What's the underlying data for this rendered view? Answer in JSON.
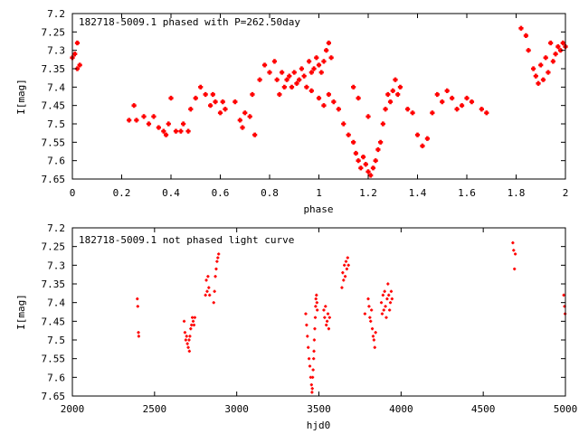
{
  "chart_data": [
    {
      "type": "scatter",
      "title": "182718-5009.1 phased with P=262.50day",
      "xlabel": "phase",
      "ylabel": "I[mag]",
      "xlim": [
        0,
        2
      ],
      "ylim": [
        7.2,
        7.65
      ],
      "y_inverted": true,
      "marker": "cross",
      "color": "#ff0000",
      "xticks": [
        0,
        0.2,
        0.4,
        0.6,
        0.8,
        1,
        1.2,
        1.4,
        1.6,
        1.8,
        2
      ],
      "xtick_labels": [
        "0",
        "0.2",
        "0.4",
        "0.6",
        "0.8",
        "1",
        "1.2",
        "1.4",
        "1.6",
        "1.8",
        "2"
      ],
      "yticks": [
        7.2,
        7.25,
        7.3,
        7.35,
        7.4,
        7.45,
        7.5,
        7.55,
        7.6,
        7.65
      ],
      "ytick_labels": [
        "7.2",
        "7.25",
        "7.3",
        "7.35",
        "7.4",
        "7.45",
        "7.5",
        "7.55",
        "7.6",
        "7.65"
      ],
      "points": [
        [
          0.0,
          7.32
        ],
        [
          0.01,
          7.31
        ],
        [
          0.02,
          7.28
        ],
        [
          0.02,
          7.35
        ],
        [
          0.03,
          7.34
        ],
        [
          0.23,
          7.49
        ],
        [
          0.25,
          7.45
        ],
        [
          0.26,
          7.49
        ],
        [
          0.29,
          7.48
        ],
        [
          0.31,
          7.5
        ],
        [
          0.33,
          7.48
        ],
        [
          0.35,
          7.51
        ],
        [
          0.37,
          7.52
        ],
        [
          0.38,
          7.53
        ],
        [
          0.39,
          7.5
        ],
        [
          0.4,
          7.43
        ],
        [
          0.42,
          7.52
        ],
        [
          0.44,
          7.52
        ],
        [
          0.45,
          7.5
        ],
        [
          0.47,
          7.52
        ],
        [
          0.48,
          7.46
        ],
        [
          0.5,
          7.43
        ],
        [
          0.52,
          7.4
        ],
        [
          0.54,
          7.42
        ],
        [
          0.56,
          7.45
        ],
        [
          0.57,
          7.42
        ],
        [
          0.58,
          7.44
        ],
        [
          0.6,
          7.47
        ],
        [
          0.61,
          7.44
        ],
        [
          0.62,
          7.46
        ],
        [
          0.66,
          7.44
        ],
        [
          0.68,
          7.49
        ],
        [
          0.69,
          7.51
        ],
        [
          0.7,
          7.47
        ],
        [
          0.72,
          7.48
        ],
        [
          0.73,
          7.42
        ],
        [
          0.74,
          7.53
        ],
        [
          0.76,
          7.38
        ],
        [
          0.78,
          7.34
        ],
        [
          0.8,
          7.36
        ],
        [
          0.82,
          7.33
        ],
        [
          0.83,
          7.38
        ],
        [
          0.84,
          7.42
        ],
        [
          0.85,
          7.36
        ],
        [
          0.86,
          7.4
        ],
        [
          0.87,
          7.38
        ],
        [
          0.88,
          7.37
        ],
        [
          0.89,
          7.4
        ],
        [
          0.9,
          7.36
        ],
        [
          0.91,
          7.39
        ],
        [
          0.92,
          7.38
        ],
        [
          0.93,
          7.35
        ],
        [
          0.94,
          7.37
        ],
        [
          0.95,
          7.4
        ],
        [
          0.96,
          7.33
        ],
        [
          0.97,
          7.36
        ],
        [
          0.98,
          7.35
        ],
        [
          0.99,
          7.32
        ],
        [
          1.0,
          7.34
        ],
        [
          1.01,
          7.36
        ],
        [
          1.02,
          7.33
        ],
        [
          1.03,
          7.3
        ],
        [
          1.04,
          7.28
        ],
        [
          1.05,
          7.32
        ],
        [
          0.97,
          7.41
        ],
        [
          1.0,
          7.43
        ],
        [
          1.02,
          7.45
        ],
        [
          1.04,
          7.42
        ],
        [
          1.06,
          7.44
        ],
        [
          1.08,
          7.46
        ],
        [
          1.1,
          7.5
        ],
        [
          1.12,
          7.53
        ],
        [
          1.14,
          7.55
        ],
        [
          1.15,
          7.58
        ],
        [
          1.16,
          7.6
        ],
        [
          1.17,
          7.62
        ],
        [
          1.18,
          7.59
        ],
        [
          1.19,
          7.61
        ],
        [
          1.2,
          7.63
        ],
        [
          1.21,
          7.64
        ],
        [
          1.22,
          7.62
        ],
        [
          1.23,
          7.6
        ],
        [
          1.24,
          7.57
        ],
        [
          1.25,
          7.55
        ],
        [
          1.26,
          7.5
        ],
        [
          1.27,
          7.46
        ],
        [
          1.28,
          7.42
        ],
        [
          1.29,
          7.44
        ],
        [
          1.3,
          7.41
        ],
        [
          1.31,
          7.38
        ],
        [
          1.32,
          7.42
        ],
        [
          1.33,
          7.4
        ],
        [
          1.14,
          7.4
        ],
        [
          1.16,
          7.43
        ],
        [
          1.2,
          7.48
        ],
        [
          1.36,
          7.46
        ],
        [
          1.38,
          7.47
        ],
        [
          1.4,
          7.53
        ],
        [
          1.42,
          7.56
        ],
        [
          1.44,
          7.54
        ],
        [
          1.46,
          7.47
        ],
        [
          1.48,
          7.42
        ],
        [
          1.5,
          7.44
        ],
        [
          1.52,
          7.41
        ],
        [
          1.54,
          7.43
        ],
        [
          1.56,
          7.46
        ],
        [
          1.58,
          7.45
        ],
        [
          1.6,
          7.43
        ],
        [
          1.62,
          7.44
        ],
        [
          1.66,
          7.46
        ],
        [
          1.68,
          7.47
        ],
        [
          1.82,
          7.24
        ],
        [
          1.84,
          7.26
        ],
        [
          1.85,
          7.3
        ],
        [
          1.87,
          7.35
        ],
        [
          1.88,
          7.37
        ],
        [
          1.89,
          7.39
        ],
        [
          1.9,
          7.34
        ],
        [
          1.91,
          7.38
        ],
        [
          1.92,
          7.32
        ],
        [
          1.93,
          7.36
        ],
        [
          1.94,
          7.28
        ],
        [
          1.95,
          7.33
        ],
        [
          1.96,
          7.31
        ],
        [
          1.97,
          7.29
        ],
        [
          1.98,
          7.3
        ],
        [
          1.99,
          7.28
        ],
        [
          2.0,
          7.29
        ]
      ]
    },
    {
      "type": "scatter",
      "title": "182718-5009.1 not phased light curve",
      "xlabel": "hjd0",
      "ylabel": "I[mag]",
      "xlim": [
        2000,
        5000
      ],
      "ylim": [
        7.2,
        7.65
      ],
      "y_inverted": true,
      "marker": "cross",
      "color": "#ff0000",
      "xticks": [
        2000,
        2500,
        3000,
        3500,
        4000,
        4500,
        5000
      ],
      "xtick_labels": [
        "2000",
        "2500",
        "3000",
        "3500",
        "4000",
        "4500",
        "5000"
      ],
      "yticks": [
        7.2,
        7.25,
        7.3,
        7.35,
        7.4,
        7.45,
        7.5,
        7.55,
        7.6,
        7.65
      ],
      "ytick_labels": [
        "7.2",
        "7.25",
        "7.3",
        "7.35",
        "7.4",
        "7.45",
        "7.5",
        "7.55",
        "7.6",
        "7.65"
      ],
      "points": [
        [
          2395,
          7.39
        ],
        [
          2398,
          7.41
        ],
        [
          2402,
          7.48
        ],
        [
          2404,
          7.49
        ],
        [
          2680,
          7.45
        ],
        [
          2685,
          7.48
        ],
        [
          2690,
          7.5
        ],
        [
          2695,
          7.49
        ],
        [
          2700,
          7.51
        ],
        [
          2705,
          7.52
        ],
        [
          2710,
          7.5
        ],
        [
          2712,
          7.53
        ],
        [
          2715,
          7.49
        ],
        [
          2720,
          7.47
        ],
        [
          2725,
          7.46
        ],
        [
          2730,
          7.44
        ],
        [
          2735,
          7.45
        ],
        [
          2740,
          7.46
        ],
        [
          2745,
          7.44
        ],
        [
          2810,
          7.38
        ],
        [
          2815,
          7.34
        ],
        [
          2820,
          7.37
        ],
        [
          2825,
          7.33
        ],
        [
          2830,
          7.36
        ],
        [
          2835,
          7.38
        ],
        [
          2860,
          7.4
        ],
        [
          2865,
          7.37
        ],
        [
          2870,
          7.33
        ],
        [
          2875,
          7.31
        ],
        [
          2880,
          7.29
        ],
        [
          2885,
          7.28
        ],
        [
          2890,
          7.27
        ],
        [
          3420,
          7.43
        ],
        [
          3425,
          7.46
        ],
        [
          3430,
          7.49
        ],
        [
          3435,
          7.52
        ],
        [
          3440,
          7.55
        ],
        [
          3445,
          7.57
        ],
        [
          3450,
          7.6
        ],
        [
          3455,
          7.62
        ],
        [
          3458,
          7.64
        ],
        [
          3460,
          7.63
        ],
        [
          3462,
          7.6
        ],
        [
          3465,
          7.58
        ],
        [
          3468,
          7.55
        ],
        [
          3470,
          7.53
        ],
        [
          3472,
          7.5
        ],
        [
          3475,
          7.47
        ],
        [
          3478,
          7.44
        ],
        [
          3480,
          7.41
        ],
        [
          3482,
          7.39
        ],
        [
          3485,
          7.38
        ],
        [
          3488,
          7.4
        ],
        [
          3490,
          7.42
        ],
        [
          3530,
          7.42
        ],
        [
          3535,
          7.44
        ],
        [
          3540,
          7.41
        ],
        [
          3545,
          7.46
        ],
        [
          3550,
          7.45
        ],
        [
          3555,
          7.43
        ],
        [
          3560,
          7.47
        ],
        [
          3565,
          7.44
        ],
        [
          3640,
          7.36
        ],
        [
          3645,
          7.32
        ],
        [
          3650,
          7.34
        ],
        [
          3655,
          7.3
        ],
        [
          3660,
          7.33
        ],
        [
          3665,
          7.29
        ],
        [
          3670,
          7.31
        ],
        [
          3675,
          7.28
        ],
        [
          3680,
          7.3
        ],
        [
          3780,
          7.43
        ],
        [
          3800,
          7.39
        ],
        [
          3805,
          7.41
        ],
        [
          3810,
          7.44
        ],
        [
          3815,
          7.45
        ],
        [
          3820,
          7.42
        ],
        [
          3825,
          7.47
        ],
        [
          3830,
          7.49
        ],
        [
          3835,
          7.5
        ],
        [
          3840,
          7.52
        ],
        [
          3845,
          7.48
        ],
        [
          3880,
          7.4
        ],
        [
          3885,
          7.43
        ],
        [
          3890,
          7.38
        ],
        [
          3895,
          7.42
        ],
        [
          3900,
          7.37
        ],
        [
          3905,
          7.41
        ],
        [
          3910,
          7.44
        ],
        [
          3915,
          7.39
        ],
        [
          3920,
          7.35
        ],
        [
          3925,
          7.38
        ],
        [
          3930,
          7.42
        ],
        [
          3935,
          7.4
        ],
        [
          3940,
          7.37
        ],
        [
          3945,
          7.39
        ],
        [
          4680,
          7.24
        ],
        [
          4685,
          7.26
        ],
        [
          4690,
          7.31
        ],
        [
          4695,
          7.27
        ],
        [
          4990,
          7.38
        ],
        [
          4995,
          7.41
        ],
        [
          4998,
          7.43
        ]
      ]
    }
  ]
}
